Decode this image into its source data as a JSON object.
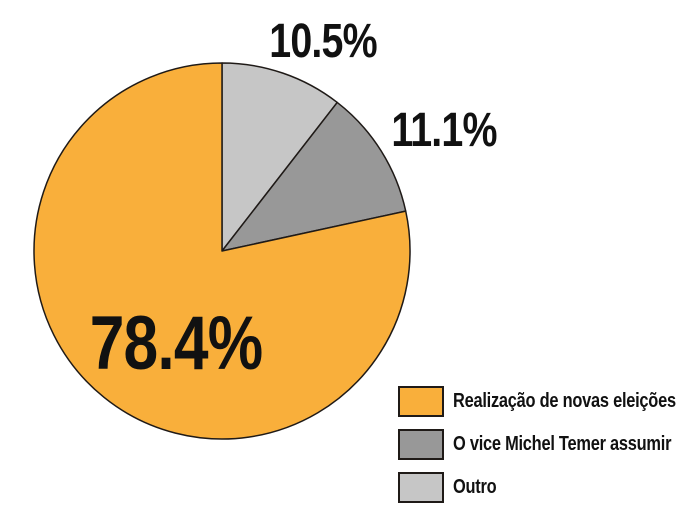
{
  "figure": {
    "background_color": "#ffffff"
  },
  "chart_data": {
    "type": "pie",
    "title": "",
    "start_angle_deg_from_top": 0,
    "direction": "clockwise",
    "stroke_color": "#1f1a17",
    "slices": [
      {
        "label": "Outro",
        "value": 10.5,
        "pct_label": "10.5%",
        "color": "#c6c6c6"
      },
      {
        "label": "O vice Michel Temer assumir",
        "value": 11.1,
        "pct_label": "11.1%",
        "color": "#989898"
      },
      {
        "label": "Realização de novas eleições",
        "value": 78.4,
        "pct_label": "78.4%",
        "color": "#f9af3b"
      }
    ],
    "legend": {
      "position": "bottom-right",
      "items": [
        {
          "label": "Realização de novas eleições",
          "color": "#f9af3b"
        },
        {
          "label": "O vice Michel Temer assumir",
          "color": "#989898"
        },
        {
          "label": "Outro",
          "color": "#c6c6c6"
        }
      ]
    }
  }
}
